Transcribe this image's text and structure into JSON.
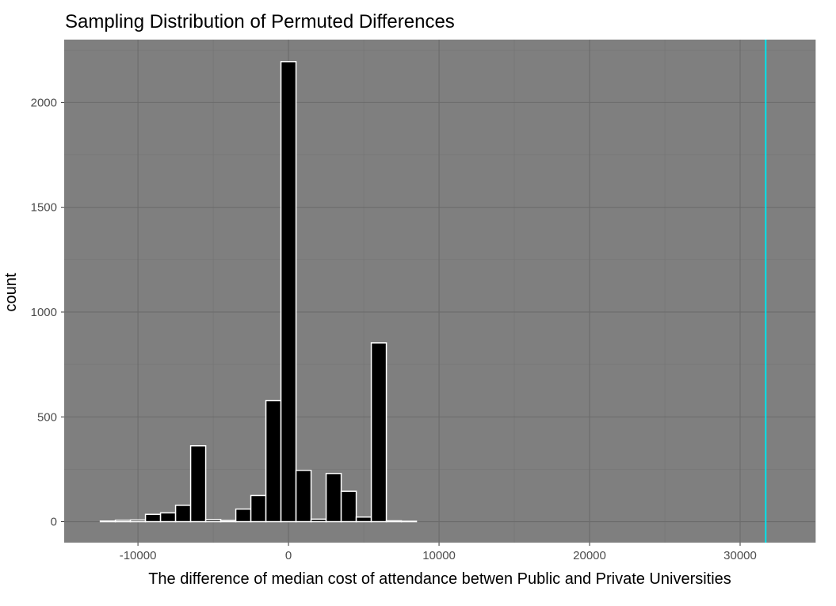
{
  "chart_data": {
    "type": "bar",
    "title": "Sampling Distribution of Permuted Differences",
    "xlabel": "The difference of median cost of attendance betwen Public and Private Universities",
    "ylabel": "count",
    "xlim": [
      -14900,
      35000
    ],
    "ylim": [
      -100,
      2300
    ],
    "x_ticks": [
      -10000,
      0,
      10000,
      20000,
      30000
    ],
    "x_tick_labels": [
      "-10000",
      "0",
      "10000",
      "20000",
      "30000"
    ],
    "y_ticks": [
      0,
      500,
      1000,
      1500,
      2000
    ],
    "y_tick_labels": [
      "0",
      "500",
      "1000",
      "1500",
      "2000"
    ],
    "bin_width": 1000,
    "bins": [
      {
        "x": -12000,
        "count": 3
      },
      {
        "x": -11000,
        "count": 7
      },
      {
        "x": -10000,
        "count": 8
      },
      {
        "x": -9000,
        "count": 35
      },
      {
        "x": -8000,
        "count": 42
      },
      {
        "x": -7000,
        "count": 78
      },
      {
        "x": -6000,
        "count": 362
      },
      {
        "x": -5000,
        "count": 10
      },
      {
        "x": -4000,
        "count": 6
      },
      {
        "x": -3000,
        "count": 60
      },
      {
        "x": -2000,
        "count": 125
      },
      {
        "x": -1000,
        "count": 578
      },
      {
        "x": 0,
        "count": 2195
      },
      {
        "x": 1000,
        "count": 245
      },
      {
        "x": 2000,
        "count": 12
      },
      {
        "x": 3000,
        "count": 230
      },
      {
        "x": 4000,
        "count": 145
      },
      {
        "x": 5000,
        "count": 22
      },
      {
        "x": 6000,
        "count": 853
      },
      {
        "x": 7000,
        "count": 4
      },
      {
        "x": 8000,
        "count": 2
      }
    ],
    "zero_bins_through": 32000,
    "reference_line": {
      "x": 31700,
      "color": "#00e5ee"
    },
    "colors": {
      "panel_background": "#7f7f7f",
      "grid_major": "#6b6b6b",
      "grid_minor": "#747474",
      "bar_fill": "#000000",
      "bar_outline": "#ffffff"
    },
    "grid": true
  }
}
